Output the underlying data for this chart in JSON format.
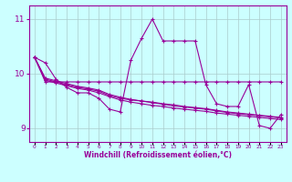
{
  "xlabel": "Windchill (Refroidissement éolien,°C)",
  "x": [
    0,
    1,
    2,
    3,
    4,
    5,
    6,
    7,
    8,
    9,
    10,
    11,
    12,
    13,
    14,
    15,
    16,
    17,
    18,
    19,
    20,
    21,
    22,
    23
  ],
  "line1": [
    10.3,
    10.2,
    9.9,
    9.75,
    9.65,
    9.65,
    9.55,
    9.35,
    9.3,
    10.25,
    10.65,
    11.0,
    10.6,
    10.6,
    10.6,
    10.6,
    9.8,
    9.45,
    9.4,
    9.4,
    9.8,
    9.05,
    9.0,
    9.25
  ],
  "line2": [
    10.3,
    9.85,
    9.85,
    9.85,
    9.85,
    9.85,
    9.85,
    9.85,
    9.85,
    9.85,
    9.85,
    9.85,
    9.85,
    9.85,
    9.85,
    9.85,
    9.85,
    9.85,
    9.85,
    9.85,
    9.85,
    9.85,
    9.85,
    9.85
  ],
  "line3": [
    10.3,
    9.9,
    9.85,
    9.8,
    9.75,
    9.72,
    9.68,
    9.6,
    9.55,
    9.52,
    9.5,
    9.48,
    9.45,
    9.43,
    9.4,
    9.38,
    9.36,
    9.33,
    9.3,
    9.28,
    9.26,
    9.24,
    9.22,
    9.2
  ],
  "line4": [
    10.3,
    9.88,
    9.83,
    9.78,
    9.73,
    9.7,
    9.65,
    9.58,
    9.52,
    9.48,
    9.45,
    9.42,
    9.4,
    9.37,
    9.35,
    9.33,
    9.31,
    9.28,
    9.26,
    9.24,
    9.22,
    9.2,
    9.18,
    9.16
  ],
  "line5": [
    10.3,
    9.92,
    9.87,
    9.82,
    9.77,
    9.74,
    9.7,
    9.62,
    9.57,
    9.53,
    9.5,
    9.47,
    9.44,
    9.41,
    9.39,
    9.37,
    9.35,
    9.32,
    9.29,
    9.27,
    9.25,
    9.23,
    9.21,
    9.19
  ],
  "line_color": "#990099",
  "bg_color": "#ccffff",
  "grid_color": "#aacccc",
  "ylim": [
    8.75,
    11.25
  ],
  "xlim": [
    -0.5,
    23.5
  ],
  "yticks": [
    9,
    10,
    11
  ],
  "marker": "+",
  "markersize": 3,
  "linewidth": 0.8
}
